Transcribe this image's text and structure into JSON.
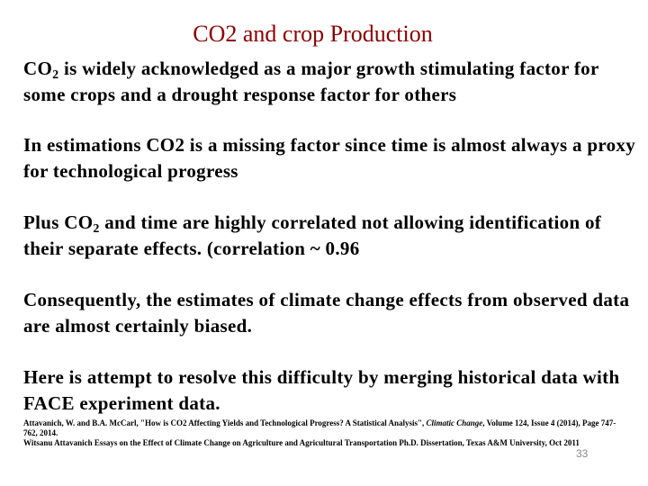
{
  "slide": {
    "title": "CO2 and crop Production",
    "paragraphs": {
      "p1": {
        "before": "CO",
        "sub": "2",
        "after": " is widely acknowledged as a major growth stimulating factor for some crops and a drought response factor for others"
      },
      "p2": "In estimations CO2 is a missing factor since time is almost always a proxy for technological progress",
      "p3": {
        "before": "Plus CO",
        "sub": "2",
        "after": " and time are highly correlated not allowing identification of their separate effects. (correlation ~ 0.96"
      },
      "p4": "Consequently, the estimates of climate change effects from observed data are almost certainly biased.",
      "p5": "Here is attempt to resolve this difficulty by merging historical data with FACE experiment data."
    },
    "references": {
      "ref1": {
        "before": "Attavanich, W. and B.A. McCarl, \"How is CO2 Affecting Yields and Technological Progress? A Statistical Analysis\", ",
        "journal": "Climatic Change",
        "after": ", Volume 124, Issue 4 (2014), Page 747-762, 2014."
      },
      "ref2": "Witsanu Attavanich Essays on the Effect of Climate Change on Agriculture and Agricultural Transportation Ph.D. Dissertation, Texas A&M University, Oct 2011"
    },
    "slide_number": "33"
  },
  "colors": {
    "title": "#8b0000",
    "text": "#000000",
    "slide_number": "#888888"
  }
}
